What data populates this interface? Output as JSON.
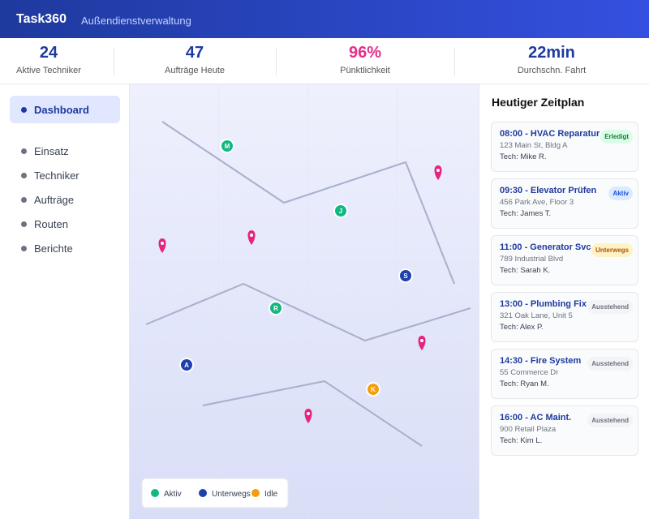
{
  "header": {
    "title": "Task360",
    "subtitle": "Außendienstverwaltung"
  },
  "stats": [
    {
      "value": "24",
      "label": "Aktive Techniker"
    },
    {
      "value": "47",
      "label": "Aufträge Heute"
    },
    {
      "value": "96%",
      "label": "Pünktlichkeit",
      "color": "#e62e8a"
    },
    {
      "value": "22min",
      "label": "Durchschn. Fahrt"
    }
  ],
  "nav": {
    "items": [
      "Dashboard",
      "Einsatz",
      "Techniker",
      "Aufträge",
      "Routen",
      "Berichte"
    ]
  },
  "map": {
    "markers": [
      {
        "label": "M",
        "color": "#10b981"
      },
      {
        "label": "J",
        "color": "#10b981"
      },
      {
        "label": "S",
        "color": "#1e40af"
      },
      {
        "label": "R",
        "color": "#10b981"
      },
      {
        "label": "A",
        "color": "#1e40af"
      },
      {
        "label": "K",
        "color": "#f59e0b"
      }
    ],
    "legend": [
      {
        "label": "Aktiv",
        "color": "#10b981"
      },
      {
        "label": "Unterwegs",
        "color": "#1e40af"
      },
      {
        "label": "Idle",
        "color": "#f59e0b"
      }
    ]
  },
  "schedule": {
    "title": "Heutiger Zeitplan",
    "items": [
      {
        "title": "08:00 - HVAC Reparatur",
        "address": "123 Main St, Bldg A",
        "tech": "Tech: Mike R.",
        "status": "Erledigt",
        "bg": "#dcfce7",
        "color": "#15803d"
      },
      {
        "title": "09:30 - Elevator Prüfen",
        "address": "456 Park Ave, Floor 3",
        "tech": "Tech: James T.",
        "status": "Aktiv",
        "bg": "#dbeafe",
        "color": "#1d4ed8"
      },
      {
        "title": "11:00 - Generator Svc",
        "address": "789 Industrial Blvd",
        "tech": "Tech: Sarah K.",
        "status": "Unterwegs",
        "bg": "#fef3c7",
        "color": "#b45309"
      },
      {
        "title": "13:00 - Plumbing Fix",
        "address": "321 Oak Lane, Unit 5",
        "tech": "Tech: Alex P.",
        "status": "Ausstehend",
        "bg": "#f3f4f6",
        "color": "#6b7280"
      },
      {
        "title": "14:30 - Fire System",
        "address": "55 Commerce Dr",
        "tech": "Tech: Ryan M.",
        "status": "Ausstehend",
        "bg": "#f3f4f6",
        "color": "#6b7280"
      },
      {
        "title": "16:00 - AC Maint.",
        "address": "900 Retail Plaza",
        "tech": "Tech: Kim L.",
        "status": "Ausstehend",
        "bg": "#f3f4f6",
        "color": "#6b7280"
      }
    ]
  }
}
